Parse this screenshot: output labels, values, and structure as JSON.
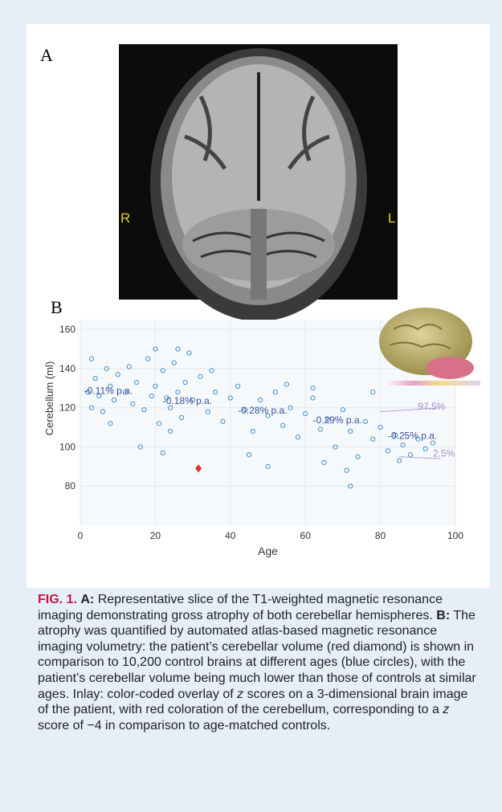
{
  "panel_a": {
    "label": "A",
    "right_label": "R",
    "left_label": "L"
  },
  "panel_b": {
    "label": "B"
  },
  "chart_data": {
    "type": "scatter",
    "y_label": "Cerebellum (ml)",
    "x_label": "Age",
    "xlim": [
      0,
      100
    ],
    "xticks": [
      0,
      20,
      40,
      60,
      80,
      100
    ],
    "ylim": [
      60,
      165
    ],
    "yticks": [
      80,
      100,
      120,
      140,
      160
    ],
    "grid": true,
    "series": [
      {
        "name": "control brains",
        "color": "#3b8fd4",
        "x": [
          2,
          3,
          4,
          5,
          6,
          7,
          8,
          9,
          10,
          12,
          14,
          15,
          17,
          18,
          19,
          20,
          21,
          22,
          23,
          24,
          25,
          26,
          27,
          28,
          30,
          32,
          34,
          36,
          38,
          40,
          42,
          44,
          46,
          48,
          50,
          52,
          54,
          56,
          58,
          60,
          62,
          64,
          66,
          68,
          70,
          72,
          74,
          76,
          78,
          80,
          82,
          84,
          86,
          88,
          90,
          92,
          94,
          3,
          8,
          13,
          20,
          24,
          29,
          35,
          45,
          55,
          65,
          72,
          78,
          85,
          16,
          22,
          26,
          50,
          62,
          71
        ],
        "values": [
          128,
          120,
          135,
          126,
          118,
          140,
          131,
          124,
          137,
          128,
          122,
          133,
          119,
          145,
          126,
          131,
          112,
          139,
          125,
          120,
          143,
          128,
          115,
          133,
          124,
          136,
          118,
          128,
          113,
          125,
          131,
          119,
          108,
          124,
          116,
          128,
          111,
          120,
          105,
          117,
          125,
          109,
          114,
          100,
          119,
          108,
          95,
          113,
          104,
          110,
          98,
          106,
          101,
          96,
          104,
          99,
          102,
          145,
          112,
          141,
          150,
          108,
          148,
          139,
          96,
          132,
          92,
          80,
          128,
          93,
          100,
          97,
          150,
          90,
          130,
          88
        ]
      },
      {
        "name": "patient",
        "color": "#d9342b",
        "x": [
          31.5
        ],
        "values": [
          89
        ]
      }
    ],
    "annotations": [
      "-0.11% p.a.",
      "-0.18% p.a.",
      "-0.28% p.a.",
      "-0.29% p.a.",
      "-0.25% p.a.",
      "97.5%",
      "2.5%"
    ]
  },
  "caption": {
    "label": "FIG. 1.",
    "a_label": "A:",
    "a_text": " Representative slice of the T1-weighted magnetic resonance imaging demonstrating gross atrophy of both cerebellar hemispheres. ",
    "b_label": "B:",
    "b_text_1": " The atrophy was quantified by automated atlas-based magnetic resonance imaging volumetry: the patient’s cerebellar volume (red diamond) is shown in comparison to 10,200 control brains at different ages (blue circles), with the patient’s cerebellar volume being much lower than those of controls at similar ages. Inlay: color-coded overlay of ",
    "z1": "z",
    "b_text_2": " scores on a 3-dimensional brain image of the patient, with red coloration of the cerebellum, corresponding to a ",
    "z2": "z",
    "b_text_3": " score of −4 in comparison to age-matched controls."
  }
}
